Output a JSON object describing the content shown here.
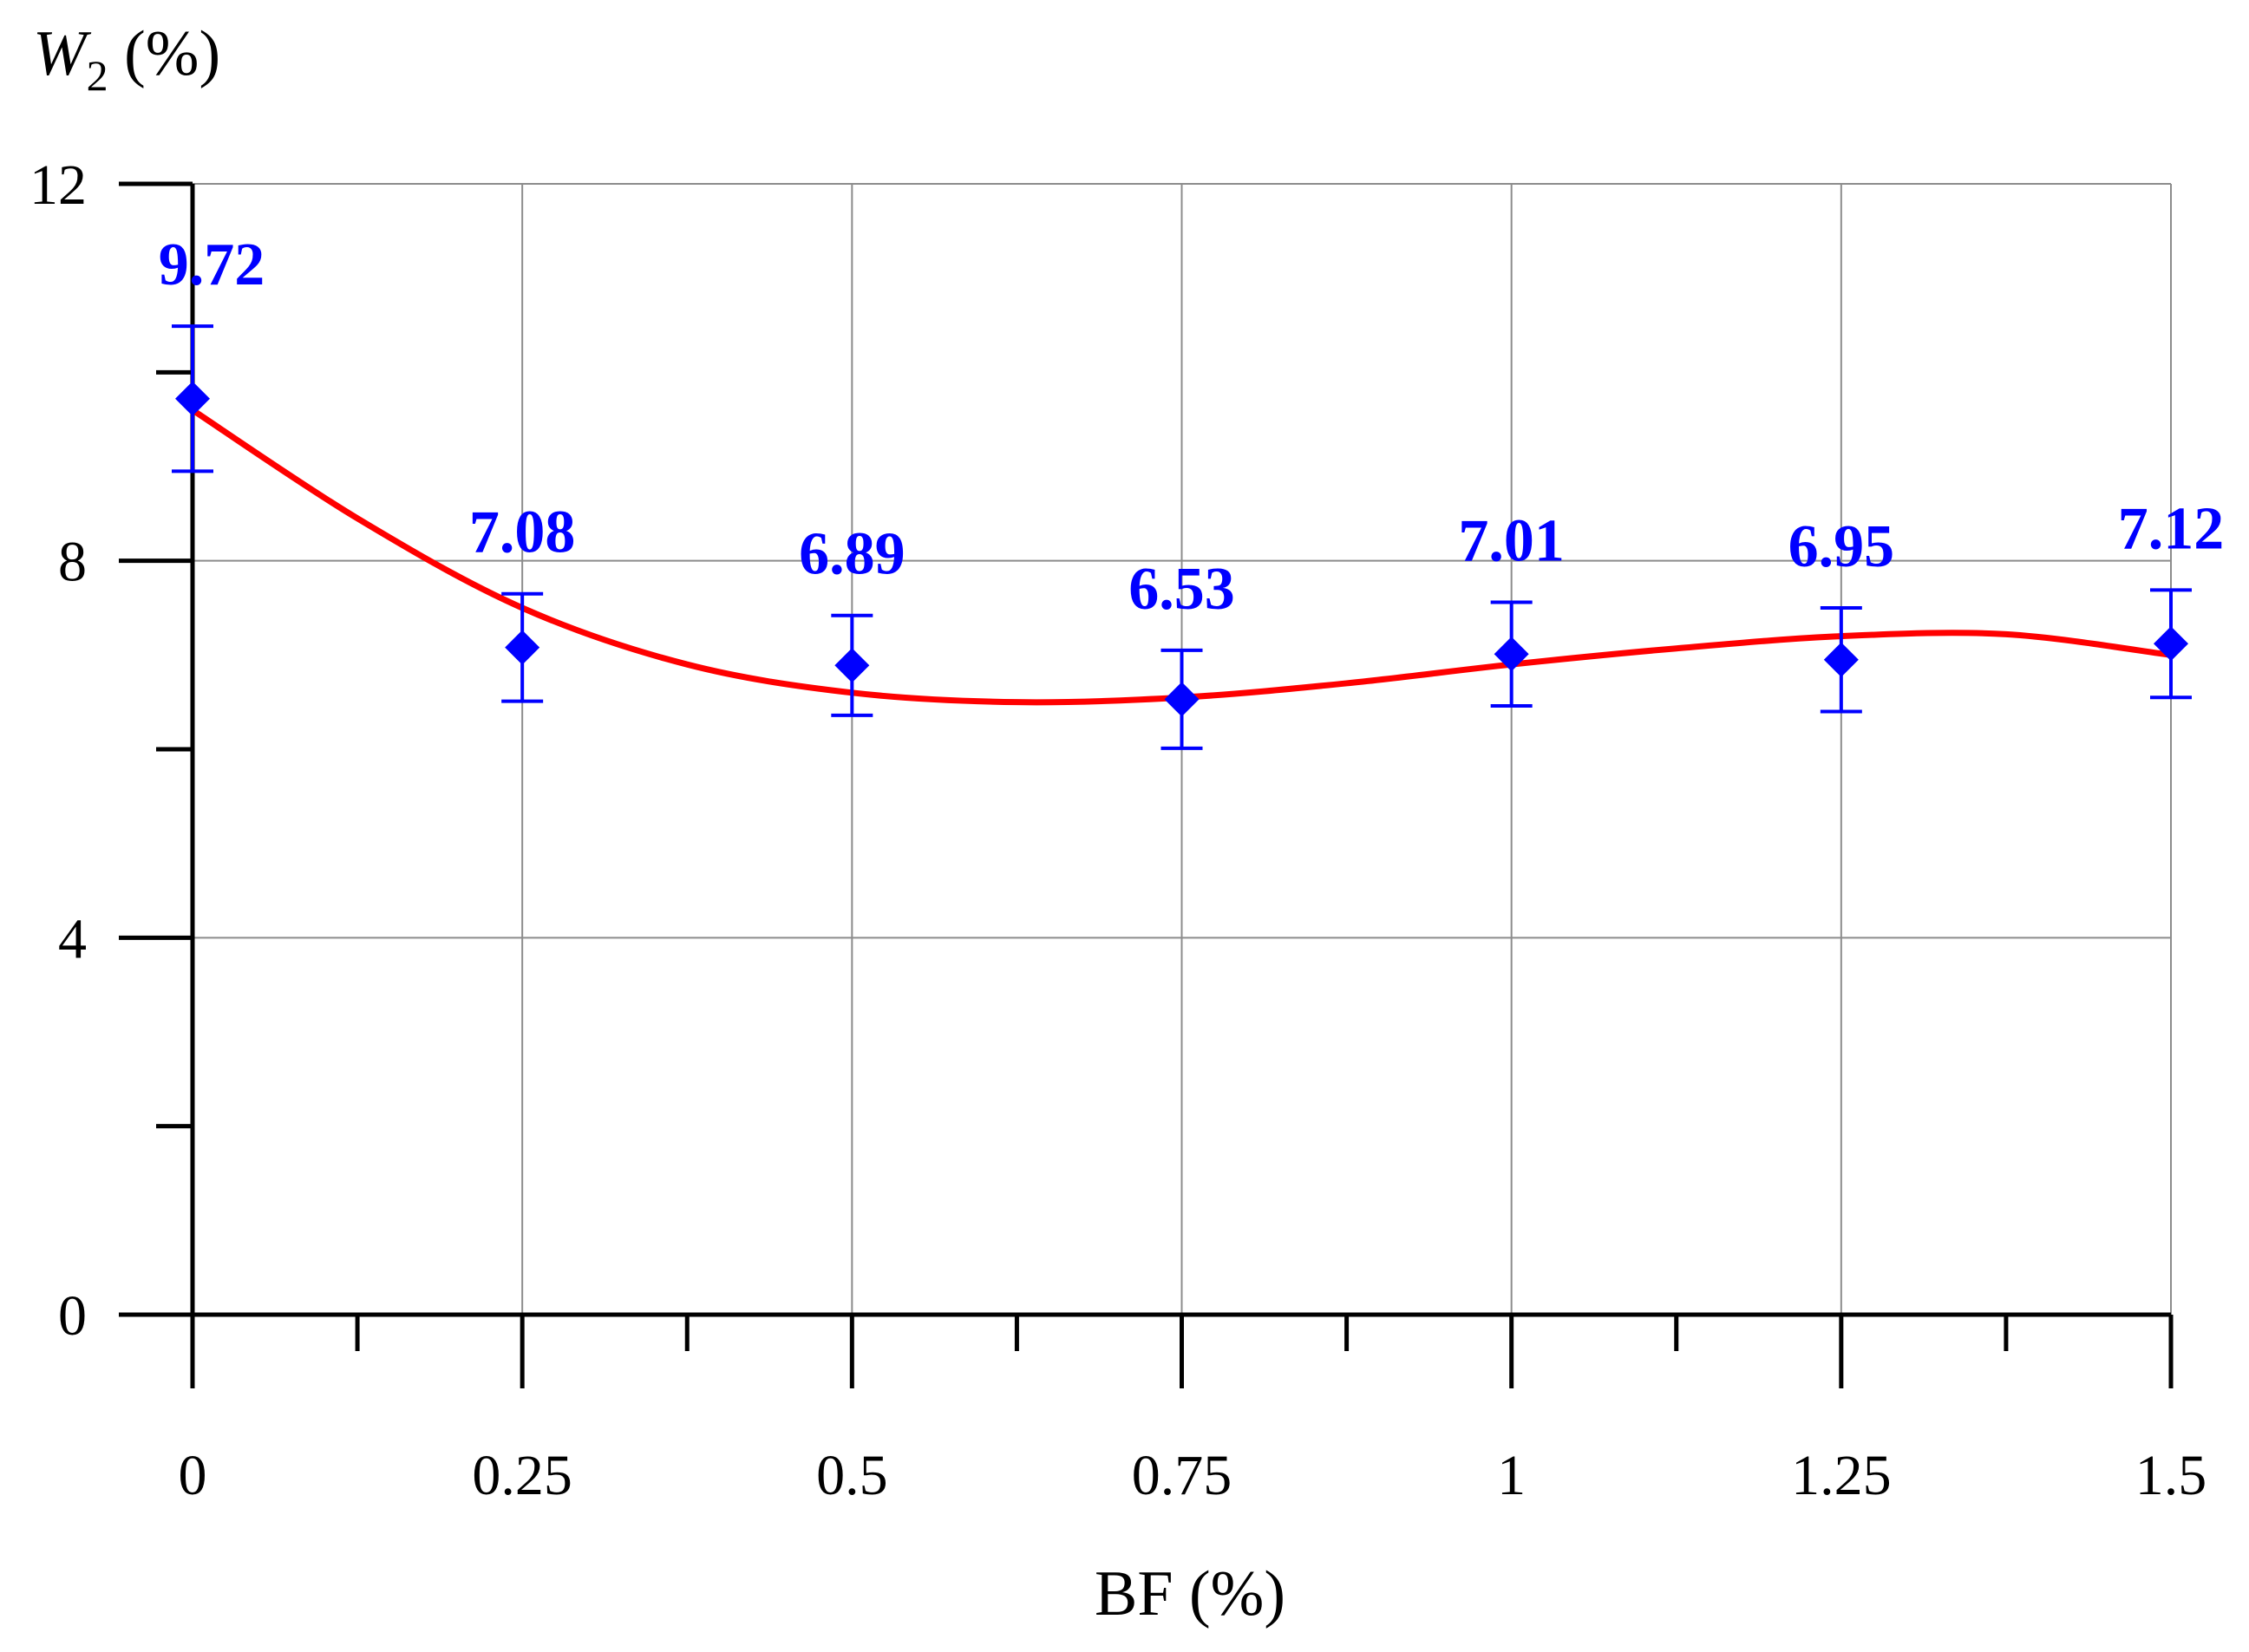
{
  "chart_data": {
    "type": "scatter",
    "title": "",
    "xlabel": "BF (%)",
    "ylabel": {
      "symbol": "W",
      "subscript": "2",
      "unit": " (%)"
    },
    "xlim": [
      0,
      1.5
    ],
    "ylim": [
      0,
      12
    ],
    "x_major_ticks": [
      0,
      0.25,
      0.5,
      0.75,
      1,
      1.25,
      1.5
    ],
    "x_tick_labels": [
      "0",
      "0.25",
      "0.5",
      "0.75",
      "1",
      "1.25",
      "1.5"
    ],
    "x_minor_ticks": [
      0.125,
      0.375,
      0.625,
      0.875,
      1.125,
      1.375
    ],
    "y_major_ticks": [
      0,
      4,
      8,
      12
    ],
    "y_tick_labels": [
      "0",
      "4",
      "8",
      "12"
    ],
    "y_minor_ticks": [
      2,
      6,
      10
    ],
    "grid": true,
    "legend": "none",
    "series": [
      {
        "marker": "diamond",
        "color": "#0000ff",
        "x": [
          0,
          0.25,
          0.5,
          0.75,
          1,
          1.25,
          1.5
        ],
        "y": [
          9.72,
          7.08,
          6.89,
          6.53,
          7.01,
          6.95,
          7.12
        ],
        "error": [
          0.77,
          0.57,
          0.53,
          0.52,
          0.55,
          0.55,
          0.57
        ],
        "labels": [
          "9.72",
          "7.08",
          "6.89",
          "6.53",
          "7.01",
          "6.95",
          "7.12"
        ]
      }
    ],
    "fit_curve": {
      "color": "#ff0000",
      "x": [
        0,
        0.125,
        0.25,
        0.375,
        0.5,
        0.625,
        0.75,
        0.875,
        1,
        1.125,
        1.25,
        1.375,
        1.5
      ],
      "y": [
        9.6,
        8.45,
        7.5,
        6.9,
        6.6,
        6.5,
        6.55,
        6.7,
        6.9,
        7.07,
        7.2,
        7.22,
        7.0
      ]
    }
  }
}
